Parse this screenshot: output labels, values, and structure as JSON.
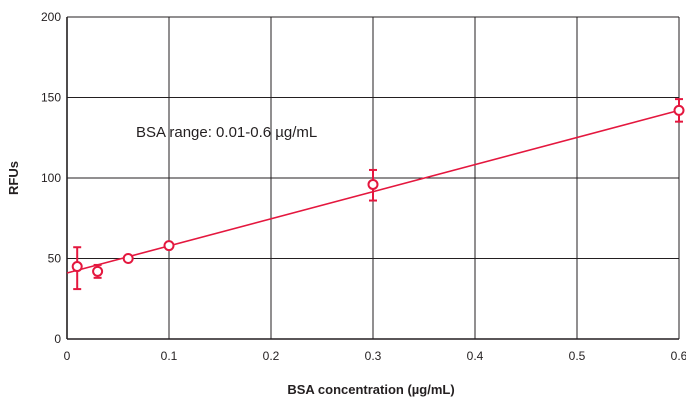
{
  "chart_data": {
    "type": "scatter",
    "xlabel": "BSA concentration (µg/mL)",
    "ylabel": "RFUs",
    "xlim": [
      0,
      0.6
    ],
    "ylim": [
      0,
      200
    ],
    "xticks": [
      0,
      0.1,
      0.2,
      0.3,
      0.4,
      0.5,
      0.6
    ],
    "xtick_labels": [
      "0",
      "0.1",
      "0.2",
      "0.3",
      "0.4",
      "0.5",
      "0.6"
    ],
    "yticks": [
      0,
      50,
      100,
      150,
      200
    ],
    "ytick_labels": [
      "0",
      "50",
      "100",
      "150",
      "200"
    ],
    "grid": true,
    "annotation": "BSA range: 0.01-0.6 µg/mL",
    "series": [
      {
        "color": "#e4173e",
        "marker": "open-circle",
        "points": [
          {
            "x": 0.01,
            "y": 45,
            "err_low": 31,
            "err_high": 57
          },
          {
            "x": 0.03,
            "y": 42,
            "err_low": 38,
            "err_high": 46
          },
          {
            "x": 0.06,
            "y": 50,
            "err_low": 49,
            "err_high": 51
          },
          {
            "x": 0.1,
            "y": 58,
            "err_low": 57,
            "err_high": 59
          },
          {
            "x": 0.3,
            "y": 96,
            "err_low": 86,
            "err_high": 105
          },
          {
            "x": 0.6,
            "y": 142,
            "err_low": 135,
            "err_high": 149
          }
        ],
        "fit": {
          "x": [
            0,
            0.6
          ],
          "y": [
            41,
            142
          ]
        }
      }
    ]
  }
}
